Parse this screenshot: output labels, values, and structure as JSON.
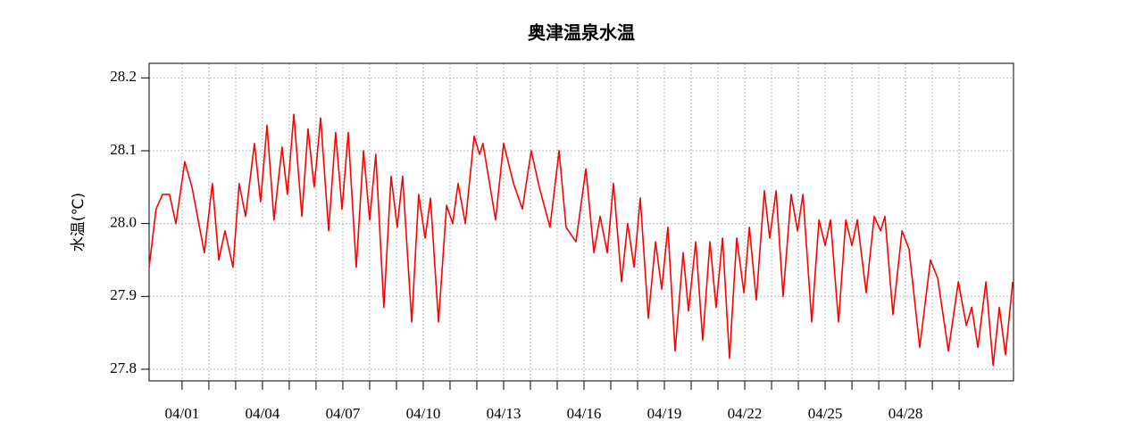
{
  "chart_data": {
    "type": "line",
    "title": "奥津温泉水温",
    "ylabel": "水温(℃)",
    "color": "#ff0000",
    "grid": true,
    "xlim": [
      -0.23,
      32.03
    ],
    "xticks": [
      {
        "value": 1,
        "label": "04/01"
      },
      {
        "value": 4,
        "label": "04/04"
      },
      {
        "value": 7,
        "label": "04/07"
      },
      {
        "value": 10,
        "label": "04/10"
      },
      {
        "value": 13,
        "label": "04/13"
      },
      {
        "value": 16,
        "label": "04/16"
      },
      {
        "value": 19,
        "label": "04/19"
      },
      {
        "value": 22,
        "label": "04/22"
      },
      {
        "value": 25,
        "label": "04/25"
      },
      {
        "value": 28,
        "label": "04/28"
      }
    ],
    "xminorticks": [
      2,
      3,
      5,
      6,
      8,
      9,
      11,
      12,
      14,
      15,
      17,
      18,
      20,
      21,
      23,
      24,
      26,
      27,
      29,
      30
    ],
    "ylim": [
      27.784,
      28.22
    ],
    "yticks": [
      27.8,
      27.9,
      {
        "value": 28,
        "label": "28.0"
      },
      28.1,
      28.2
    ],
    "x": [
      -0.23,
      0.03,
      0.27,
      0.53,
      0.77,
      1.1,
      1.37,
      1.83,
      2.13,
      2.37,
      2.6,
      2.9,
      3.13,
      3.37,
      3.7,
      3.93,
      4.17,
      4.43,
      4.73,
      4.93,
      5.17,
      5.47,
      5.7,
      5.93,
      6.17,
      6.47,
      6.73,
      6.97,
      7.2,
      7.5,
      7.77,
      8.0,
      8.23,
      8.53,
      8.8,
      9.03,
      9.23,
      9.57,
      9.83,
      10.07,
      10.27,
      10.57,
      10.87,
      11.1,
      11.3,
      11.57,
      11.9,
      12.1,
      12.23,
      12.7,
      13.0,
      13.37,
      13.7,
      14.03,
      14.33,
      14.73,
      15.07,
      15.33,
      15.7,
      16.07,
      16.37,
      16.6,
      16.87,
      17.1,
      17.4,
      17.63,
      17.87,
      18.1,
      18.4,
      18.67,
      18.9,
      19.13,
      19.4,
      19.7,
      19.9,
      20.17,
      20.43,
      20.7,
      20.93,
      21.17,
      21.43,
      21.7,
      21.97,
      22.17,
      22.43,
      22.73,
      22.93,
      23.17,
      23.43,
      23.73,
      23.97,
      24.17,
      24.5,
      24.77,
      25.0,
      25.2,
      25.5,
      25.77,
      26.0,
      26.2,
      26.53,
      26.83,
      27.07,
      27.23,
      27.53,
      27.87,
      28.13,
      28.53,
      28.93,
      29.2,
      29.6,
      29.97,
      30.27,
      30.47,
      30.7,
      31.0,
      31.27,
      31.5,
      31.73,
      32.0
    ],
    "values": [
      27.94,
      28.02,
      28.04,
      28.04,
      28.0,
      28.085,
      28.05,
      27.96,
      28.055,
      27.95,
      27.99,
      27.94,
      28.055,
      28.01,
      28.11,
      28.03,
      28.135,
      28.005,
      28.105,
      28.04,
      28.15,
      28.01,
      28.13,
      28.05,
      28.145,
      27.99,
      28.125,
      28.02,
      28.125,
      27.94,
      28.1,
      28.005,
      28.095,
      27.885,
      28.065,
      27.995,
      28.065,
      27.865,
      28.04,
      27.98,
      28.035,
      27.865,
      28.025,
      28.0,
      28.055,
      28.0,
      28.12,
      28.095,
      28.11,
      28.005,
      28.11,
      28.055,
      28.02,
      28.1,
      28.05,
      27.995,
      28.1,
      27.995,
      27.975,
      28.075,
      27.96,
      28.01,
      27.96,
      28.055,
      27.92,
      28.0,
      27.94,
      28.035,
      27.87,
      27.975,
      27.91,
      27.995,
      27.825,
      27.96,
      27.88,
      27.975,
      27.84,
      27.975,
      27.885,
      27.98,
      27.815,
      27.98,
      27.905,
      27.995,
      27.895,
      28.045,
      27.98,
      28.045,
      27.9,
      28.04,
      27.99,
      28.04,
      27.865,
      28.005,
      27.97,
      28.005,
      27.865,
      28.005,
      27.97,
      28.005,
      27.905,
      28.01,
      27.99,
      28.01,
      27.875,
      27.99,
      27.965,
      27.83,
      27.95,
      27.925,
      27.825,
      27.92,
      27.86,
      27.885,
      27.83,
      27.92,
      27.805,
      27.885,
      27.82,
      27.92
    ]
  }
}
